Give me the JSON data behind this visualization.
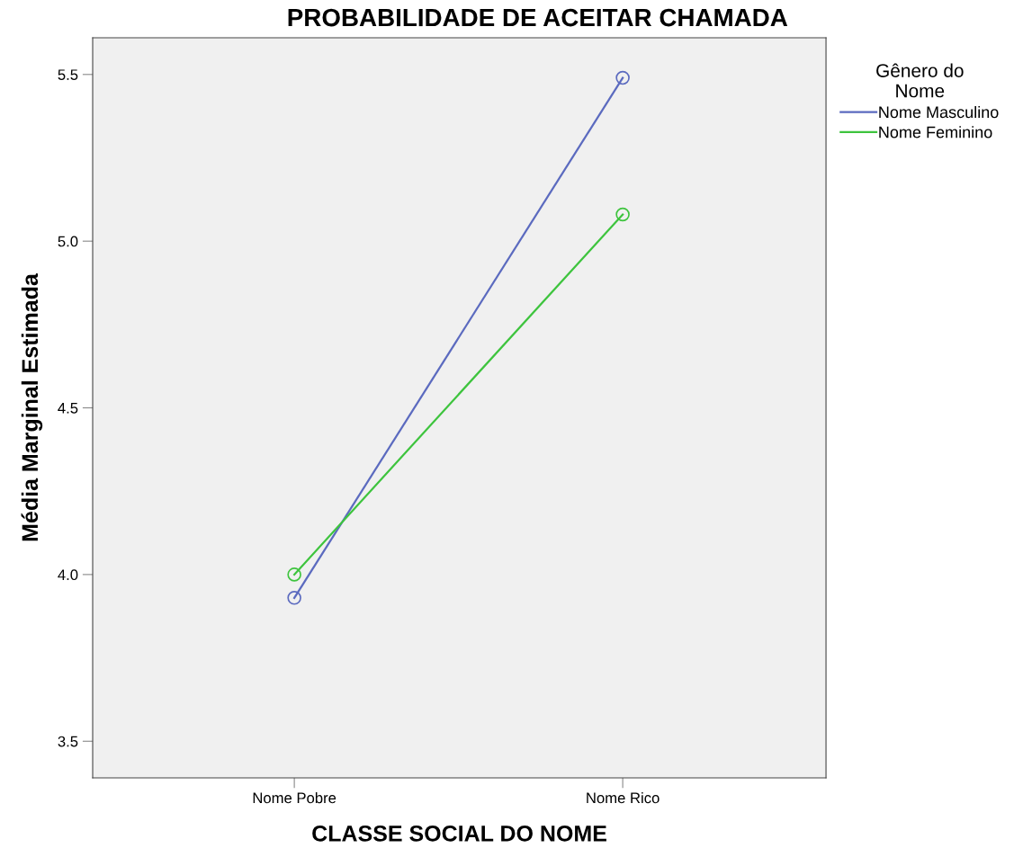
{
  "chart_data": {
    "type": "line",
    "title": "PROBABILIDADE DE ACEITAR CHAMADA",
    "xlabel": "CLASSE SOCIAL DO NOME",
    "ylabel": "Média Marginal Estimada",
    "categories": [
      "Nome Pobre",
      "Nome Rico"
    ],
    "series": [
      {
        "name": "Nome Masculino",
        "color": "#5b6abf",
        "values": [
          3.93,
          5.49
        ]
      },
      {
        "name": "Nome Feminino",
        "color": "#3ec43e",
        "values": [
          4.0,
          5.08
        ]
      }
    ],
    "ylim": [
      3.39,
      5.61
    ],
    "yticks": [
      {
        "value": 3.5,
        "label": "3.5"
      },
      {
        "value": 4.0,
        "label": "4.0"
      },
      {
        "value": 4.5,
        "label": "4.5"
      },
      {
        "value": 5.0,
        "label": "5.0"
      },
      {
        "value": 5.5,
        "label": "5.5"
      }
    ],
    "legend": "right",
    "legend_title": "Gênero do\nNome",
    "marker": "circle",
    "line_style": "solid",
    "grid": false
  }
}
